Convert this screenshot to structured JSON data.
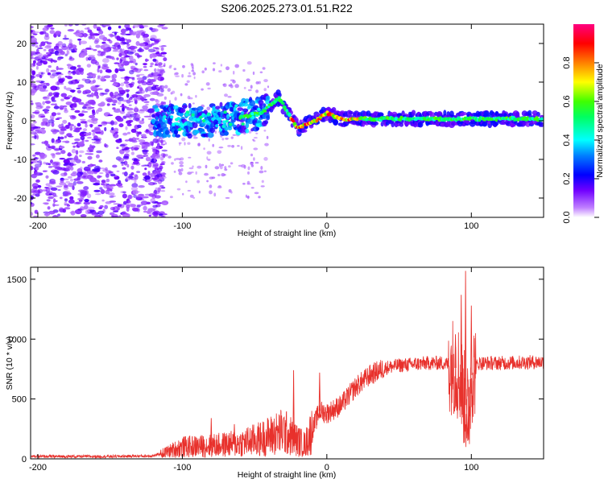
{
  "title": "S206.2025.273.01.51.R22",
  "colors": {
    "snr_line": "#e8312c",
    "frame": "#000000"
  },
  "chart_data": [
    {
      "type": "heatmap",
      "xlabel": "Height of straight line (km)",
      "ylabel": "Frequency (Hz)",
      "xlim": [
        -205,
        150
      ],
      "ylim": [
        -25,
        25
      ],
      "xticks": [
        -200,
        -100,
        0,
        100
      ],
      "xtick_labels": [
        "-200",
        "-100",
        "0",
        "100"
      ],
      "yticks": [
        -20,
        -10,
        0,
        10,
        20
      ],
      "ytick_labels": [
        "-20",
        "-10",
        "0",
        "10",
        "20"
      ],
      "colorbar": {
        "label": "Normalized spectral amplitude",
        "range": [
          0,
          1
        ],
        "ticks": [
          0.0,
          0.2,
          0.4,
          0.6,
          0.8
        ],
        "tick_labels": [
          "0.0",
          "0.2",
          "0.4",
          "0.6",
          "0.8"
        ],
        "colormap": [
          "#ffffff",
          "#8000ff",
          "#0000ff",
          "#00ffff",
          "#00ff00",
          "#ffff00",
          "#ff8000",
          "#ff0000",
          "#ff0080"
        ]
      },
      "description_track": {
        "noise_region_x": [
          -205,
          -120
        ],
        "signal_track": [
          [
            -120,
            0
          ],
          [
            -100,
            0
          ],
          [
            -80,
            0
          ],
          [
            -60,
            1
          ],
          [
            -45,
            2
          ],
          [
            -33,
            6
          ],
          [
            -27,
            2
          ],
          [
            -20,
            -2
          ],
          [
            -15,
            -1
          ],
          [
            -8,
            0
          ],
          [
            0,
            2
          ],
          [
            10,
            0.5
          ],
          [
            30,
            0.5
          ],
          [
            60,
            0.5
          ],
          [
            90,
            0.5
          ],
          [
            100,
            0.5
          ],
          [
            150,
            0.5
          ]
        ]
      }
    },
    {
      "type": "line",
      "xlabel": "Height of straight line (km)",
      "ylabel": "SNR (10 * v/v)",
      "xlim": [
        -205,
        150
      ],
      "ylim": [
        0,
        1600
      ],
      "xticks": [
        -200,
        -100,
        0,
        100
      ],
      "xtick_labels": [
        "-200",
        "-100",
        "0",
        "100"
      ],
      "yticks": [
        0,
        500,
        1000,
        1500
      ],
      "ytick_labels": [
        "0",
        "500",
        "1000",
        "1500"
      ],
      "series": [
        {
          "name": "SNR",
          "trend_x": [
            -205,
            -150,
            -120,
            -110,
            -100,
            -80,
            -60,
            -45,
            -30,
            -20,
            -15,
            -10,
            -5,
            0,
            10,
            20,
            30,
            40,
            50,
            60,
            70,
            80,
            88,
            92,
            95,
            98,
            100,
            105,
            120,
            150
          ],
          "trend_y": [
            20,
            20,
            25,
            60,
            100,
            110,
            130,
            170,
            230,
            150,
            120,
            250,
            400,
            380,
            450,
            600,
            700,
            760,
            780,
            790,
            800,
            800,
            780,
            700,
            500,
            350,
            700,
            800,
            800,
            810
          ],
          "peaks": [
            [
              96,
              1570
            ],
            [
              93,
              1370
            ],
            [
              100,
              1280
            ],
            [
              89,
              1040
            ],
            [
              -23,
              740
            ],
            [
              -5,
              720
            ],
            [
              -80,
              340
            ],
            [
              -64,
              290
            ]
          ]
        }
      ]
    }
  ]
}
